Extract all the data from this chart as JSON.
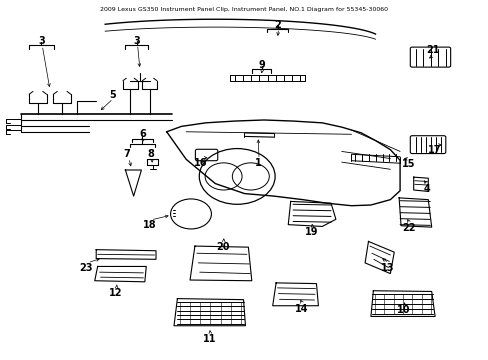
{
  "title": "2009 Lexus GS350 Instrument Panel Clip, Instrument Panel, NO.1 Diagram for 55345-30060",
  "background_color": "#ffffff",
  "fig_width": 4.89,
  "fig_height": 3.6,
  "dpi": 100,
  "line_color": "#000000",
  "label_fontsize": 7
}
